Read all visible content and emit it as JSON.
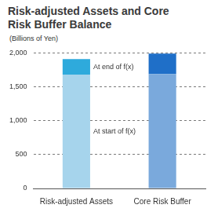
{
  "chart_data": {
    "type": "bar",
    "title": "Risk-adjusted Assets and Core Risk Buffer Balance",
    "y_label": "(Billions of Yen)",
    "categories": [
      "Risk-adjusted Assets",
      "Core Risk Buffer"
    ],
    "series": [
      {
        "name": "At start of f(x)",
        "colors": [
          "#a6d4ec",
          "#7aa9dc"
        ],
        "values": [
          1680,
          1690
        ]
      },
      {
        "name": "At end of f(x)",
        "colors": [
          "#2eaadc",
          "#1f6fc8"
        ],
        "values": [
          230,
          300
        ]
      }
    ],
    "stacked": true,
    "ylim": [
      0,
      2000
    ],
    "yticks": [
      0,
      500,
      {
        "value": 1000,
        "label": "1,000"
      },
      {
        "value": 1500,
        "label": "1,500"
      },
      {
        "value": 2000,
        "label": "2,000"
      }
    ],
    "grid": true
  }
}
